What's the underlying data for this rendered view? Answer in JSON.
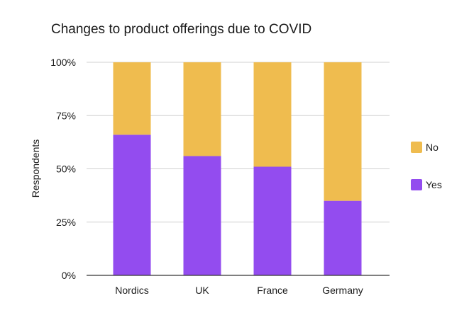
{
  "chart_data": {
    "type": "bar",
    "stacked": true,
    "title": "Changes to product offerings due to COVID",
    "xlabel": "",
    "ylabel": "Respondents",
    "categories": [
      "Nordics",
      "UK",
      "France",
      "Germany"
    ],
    "series": [
      {
        "name": "Yes",
        "values": [
          66,
          56,
          51,
          35
        ],
        "color": "#934cef"
      },
      {
        "name": "No",
        "values": [
          34,
          44,
          49,
          65
        ],
        "color": "#efbc4f"
      }
    ],
    "ylim": [
      0,
      100
    ],
    "yticks": [
      0,
      25,
      50,
      75,
      100
    ],
    "ytick_labels": [
      "0%",
      "25%",
      "50%",
      "75%",
      "100%"
    ],
    "grid": true,
    "legend_position": "right",
    "legend_order": [
      "No",
      "Yes"
    ]
  }
}
